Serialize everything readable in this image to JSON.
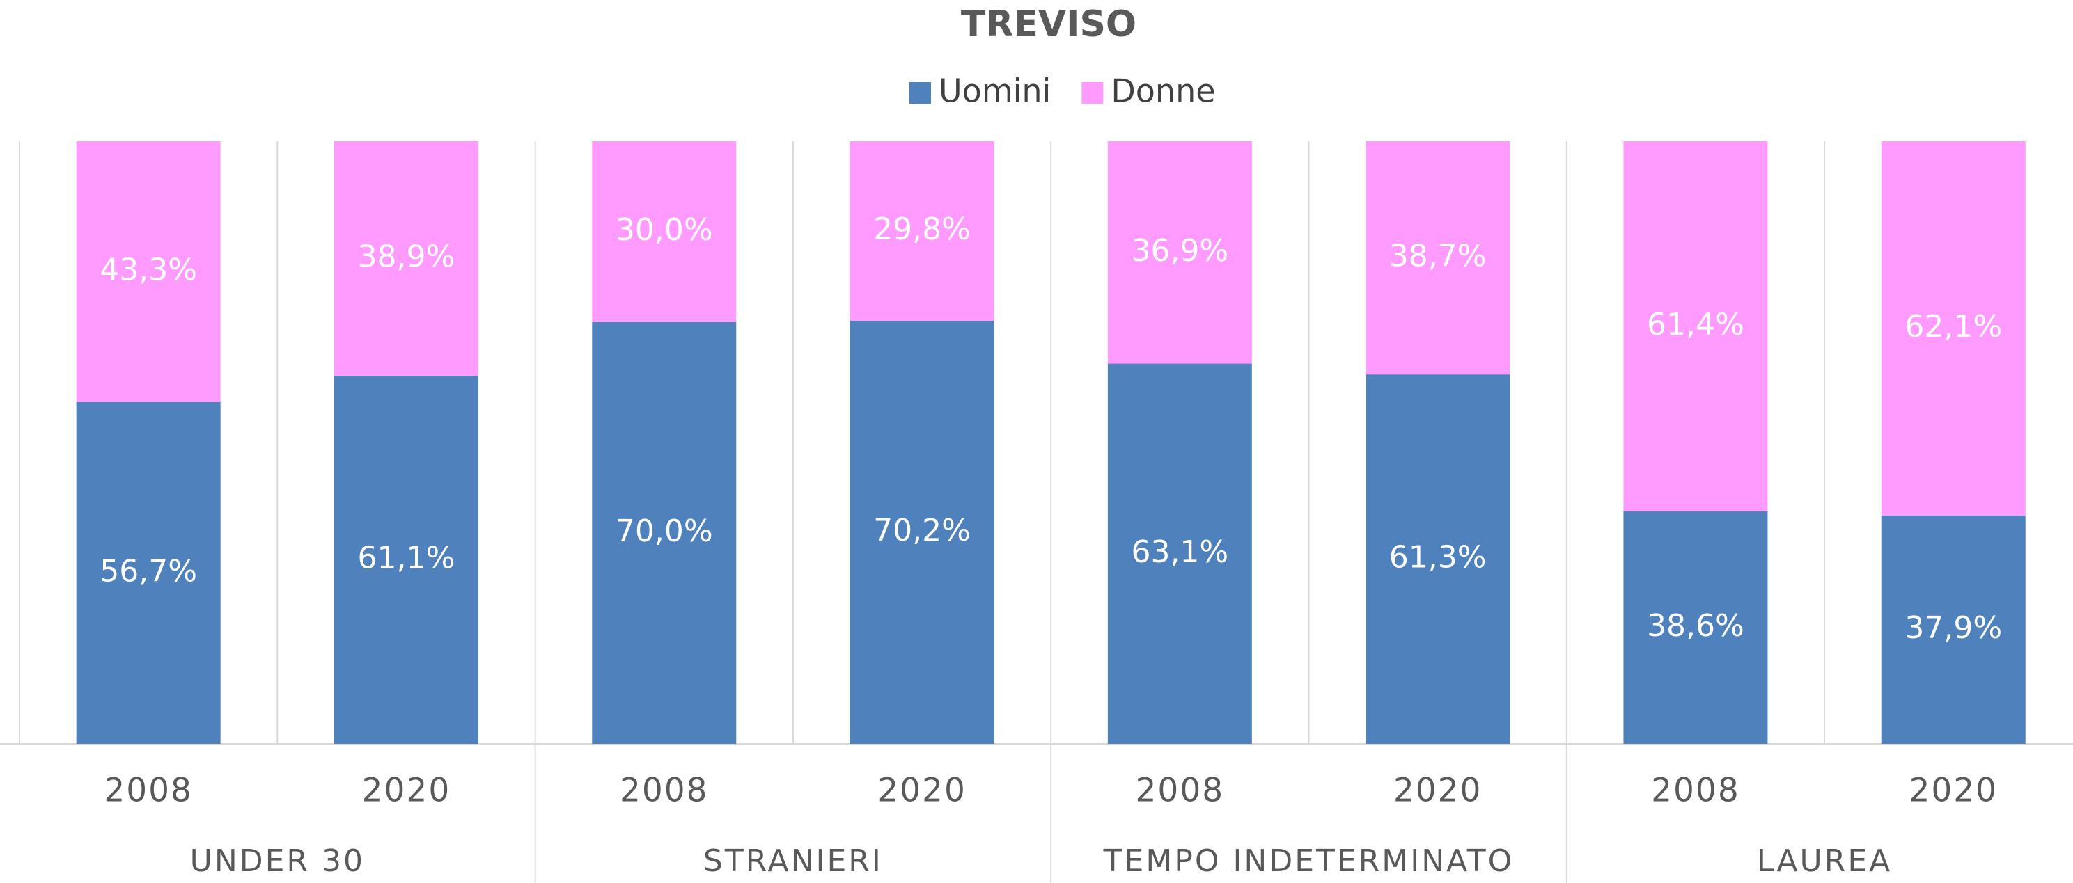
{
  "chart_data": {
    "type": "stacked_bar",
    "title": "TREVISO",
    "categories": [
      "2008",
      "2020",
      "2008",
      "2020",
      "2008",
      "2020",
      "2008",
      "2020"
    ],
    "groups": [
      "UNDER 30",
      "STRANIERI",
      "TEMPO INDETERMINATO",
      "LAUREA"
    ],
    "series": [
      {
        "name": "Uomini",
        "color": "#4f81bd",
        "values": [
          56.7,
          61.1,
          70.0,
          70.2,
          63.1,
          61.3,
          38.6,
          37.9
        ],
        "value_labels": [
          "56,7%",
          "61,1%",
          "70,0%",
          "70,2%",
          "63,1%",
          "61,3%",
          "38,6%",
          "37,9%"
        ]
      },
      {
        "name": "Donne",
        "color": "#ff9bff",
        "values": [
          43.3,
          38.9,
          30.0,
          29.8,
          36.9,
          38.7,
          61.4,
          62.1
        ],
        "value_labels": [
          "43,3%",
          "38,9%",
          "30,0%",
          "29,8%",
          "36,9%",
          "38,7%",
          "61,4%",
          "62,1%"
        ]
      }
    ],
    "ylim": [
      0,
      100
    ],
    "legend": "top"
  }
}
